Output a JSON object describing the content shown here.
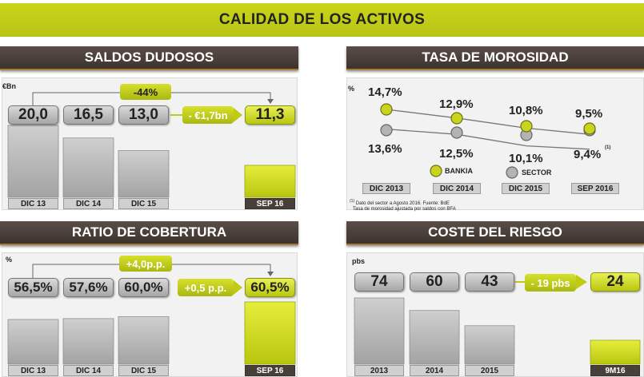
{
  "header": {
    "title": "CALIDAD DE LOS ACTIVOS"
  },
  "colors": {
    "green": "#bfcc13",
    "gray": "#b0b0b0",
    "brown": "#4a3e38"
  },
  "chart_data": [
    {
      "type": "bar",
      "title": "SALDOS DUDOSOS",
      "unit": "€Bn",
      "categories": [
        "DIC 13",
        "DIC 14",
        "DIC 15",
        "SEP 16"
      ],
      "values": [
        20.0,
        16.5,
        13.0,
        11.3
      ],
      "value_labels": [
        "20,0",
        "16,5",
        "13,0",
        "11,3"
      ],
      "highlight": "SEP 16",
      "annotations": {
        "overall_change": "-44%",
        "step_change": "- €1,7bn"
      }
    },
    {
      "type": "line",
      "title": "TASA DE MOROSIDAD",
      "unit": "%",
      "categories": [
        "DIC 2013",
        "DIC 2014",
        "DIC 2015",
        "SEP 2016"
      ],
      "series": [
        {
          "name": "BANKIA",
          "values": [
            14.7,
            12.9,
            10.8,
            9.5
          ],
          "labels": [
            "14,7%",
            "12,9%",
            "10,8%",
            "9,5%"
          ]
        },
        {
          "name": "SECTOR",
          "values": [
            13.6,
            12.5,
            10.1,
            9.4
          ],
          "labels": [
            "13,6%",
            "12,5%",
            "10,1%",
            "9,4%"
          ]
        }
      ],
      "footnote_mark": "(1)",
      "footnote": [
        "Dato del sector a Agosto 2016. Fuente: BdE",
        "Tasa de morosidad ajustada por saldos con BFA"
      ],
      "footnote_number": "(1)"
    },
    {
      "type": "bar",
      "title": "RATIO DE COBERTURA",
      "unit": "%",
      "categories": [
        "DIC 13",
        "DIC 14",
        "DIC 15",
        "SEP 16"
      ],
      "values": [
        56.5,
        57.6,
        60.0,
        60.5
      ],
      "value_labels": [
        "56,5%",
        "57,6%",
        "60,0%",
        "60,5%"
      ],
      "highlight": "SEP 16",
      "annotations": {
        "overall_change": "+4,0p.p.",
        "step_change": "+0,5 p.p."
      }
    },
    {
      "type": "bar",
      "title": "COSTE DEL RIESGO",
      "unit": "pbs",
      "categories": [
        "2013",
        "2014",
        "2015",
        "9M16"
      ],
      "values": [
        74,
        60,
        43,
        24
      ],
      "value_labels": [
        "74",
        "60",
        "43",
        "24"
      ],
      "highlight": "9M16",
      "annotations": {
        "step_change": "- 19 pbs"
      }
    }
  ]
}
